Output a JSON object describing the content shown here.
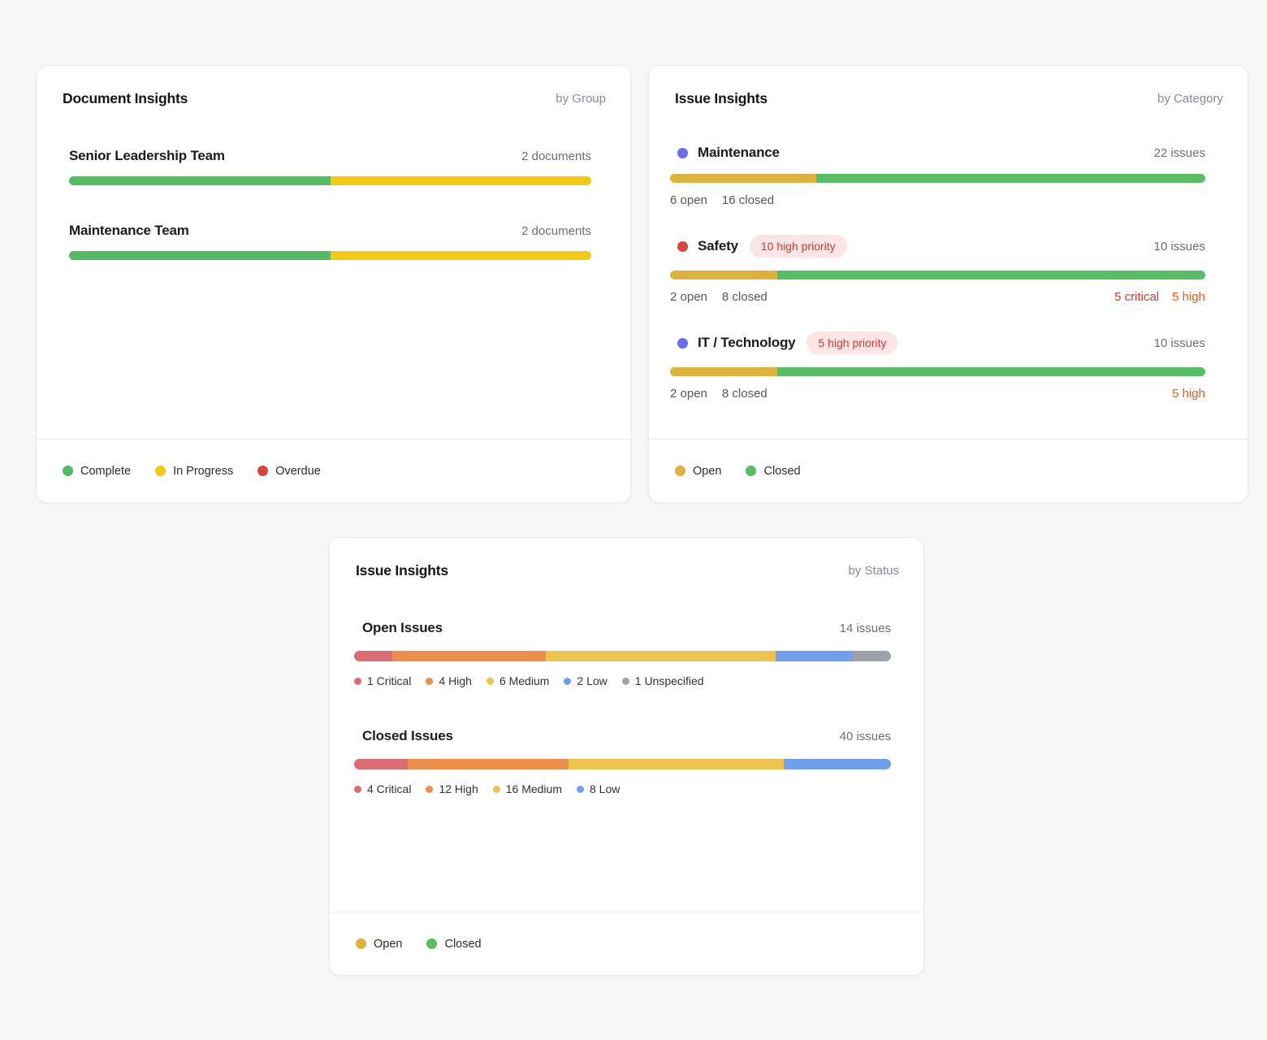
{
  "page": {
    "background": "#f7f7f8"
  },
  "colors": {
    "complete_green": "#53BC62",
    "in_progress_yellow": "#F3C913",
    "overdue_red": "#D8453A",
    "open_gold": "#DDB33E",
    "closed_green": "#57BE66",
    "category_indigo": "#6A6FE8",
    "category_red": "#D8453A",
    "critical_salmon": "#DD6B74",
    "high_orange": "#EB8F4B",
    "medium_yellow": "#EFC44D",
    "low_blue": "#6FA0EE",
    "unspecified_gray": "#9EA3AA",
    "badge_bg": "#FBE5E7",
    "badge_text": "#D5382E",
    "critical_text": "#D5382E",
    "high_text": "#ED5B16"
  },
  "document_insights": {
    "title": "Document Insights",
    "view_label": "by Group",
    "rows": [
      {
        "label": "Senior Leadership Team",
        "count": "2 documents",
        "segments": [
          {
            "status": "complete",
            "color": "#53BC62",
            "pct": 50
          },
          {
            "status": "in-progress",
            "color": "#F3C913",
            "pct": 50
          }
        ]
      },
      {
        "label": "Maintenance Team",
        "count": "2 documents",
        "segments": [
          {
            "status": "complete",
            "color": "#53BC62",
            "pct": 50
          },
          {
            "status": "in-progress",
            "color": "#F3C913",
            "pct": 50
          }
        ]
      }
    ],
    "legend": [
      {
        "label": "Complete",
        "color": "#53BC62"
      },
      {
        "label": "In Progress",
        "color": "#F3C913"
      },
      {
        "label": "Overdue",
        "color": "#D8453A"
      }
    ]
  },
  "issues_by_category": {
    "title": "Issue Insights",
    "view_label": "by Category",
    "rows": [
      {
        "label": "Maintenance",
        "dot_color": "#6A6FE8",
        "badge": null,
        "count": "22 issues",
        "segments": [
          {
            "status": "open",
            "color": "#DDB33E",
            "pct": 27.3
          },
          {
            "status": "closed",
            "color": "#57BE66",
            "pct": 72.7
          }
        ],
        "sub_left": [
          "6 open",
          "16 closed"
        ],
        "sub_right": []
      },
      {
        "label": "Safety",
        "dot_color": "#D8453A",
        "badge": "10 high priority",
        "count": "10 issues",
        "segments": [
          {
            "status": "open",
            "color": "#DDB33E",
            "pct": 20
          },
          {
            "status": "closed",
            "color": "#57BE66",
            "pct": 80
          }
        ],
        "sub_left": [
          "2 open",
          "8 closed"
        ],
        "sub_right": [
          {
            "text": "5 critical",
            "color": "#D5382E"
          },
          {
            "text": "5 high",
            "color": "#ED5B16"
          }
        ]
      },
      {
        "label": "IT / Technology",
        "dot_color": "#6A6FE8",
        "badge": "5 high priority",
        "count": "10 issues",
        "segments": [
          {
            "status": "open",
            "color": "#DDB33E",
            "pct": 20
          },
          {
            "status": "closed",
            "color": "#57BE66",
            "pct": 80
          }
        ],
        "sub_left": [
          "2 open",
          "8 closed"
        ],
        "sub_right": [
          {
            "text": "5 high",
            "color": "#ED5B16"
          }
        ]
      }
    ],
    "legend": [
      {
        "label": "Open",
        "color": "#DDB33E"
      },
      {
        "label": "Closed",
        "color": "#57BE66"
      }
    ]
  },
  "issues_by_status": {
    "title": "Issue Insights",
    "view_label": "by Status",
    "rows": [
      {
        "label": "Open Issues",
        "count": "14 issues",
        "total": 14,
        "segments": [
          {
            "label": "1 Critical",
            "value": 1,
            "color": "#DD6B74"
          },
          {
            "label": "4 High",
            "value": 4,
            "color": "#EB8F4B"
          },
          {
            "label": "6 Medium",
            "value": 6,
            "color": "#EFC44D"
          },
          {
            "label": "2 Low",
            "value": 2,
            "color": "#6FA0EE"
          },
          {
            "label": "1 Unspecified",
            "value": 1,
            "color": "#9EA3AA"
          }
        ]
      },
      {
        "label": "Closed Issues",
        "count": "40 issues",
        "total": 40,
        "segments": [
          {
            "label": "4 Critical",
            "value": 4,
            "color": "#DD6B74"
          },
          {
            "label": "12 High",
            "value": 12,
            "color": "#EB8F4B"
          },
          {
            "label": "16 Medium",
            "value": 16,
            "color": "#EFC44D"
          },
          {
            "label": "8 Low",
            "value": 8,
            "color": "#6FA0EE"
          }
        ]
      }
    ],
    "legend": [
      {
        "label": "Open",
        "color": "#DDB33E"
      },
      {
        "label": "Closed",
        "color": "#57BE66"
      }
    ]
  },
  "chart_data": [
    {
      "type": "bar",
      "title": "Document Insights by Group",
      "categories": [
        "Senior Leadership Team",
        "Maintenance Team"
      ],
      "series": [
        {
          "name": "Complete",
          "values": [
            1,
            1
          ]
        },
        {
          "name": "In Progress",
          "values": [
            1,
            1
          ]
        },
        {
          "name": "Overdue",
          "values": [
            0,
            0
          ]
        }
      ],
      "totals": [
        2,
        2
      ],
      "units": "documents",
      "legend_position": "bottom"
    },
    {
      "type": "bar",
      "title": "Issue Insights by Category",
      "categories": [
        "Maintenance",
        "Safety",
        "IT / Technology"
      ],
      "series": [
        {
          "name": "Open",
          "values": [
            6,
            2,
            2
          ]
        },
        {
          "name": "Closed",
          "values": [
            16,
            8,
            8
          ]
        }
      ],
      "totals": [
        22,
        10,
        10
      ],
      "annotations": [
        "",
        "10 high priority; 5 critical, 5 high",
        "5 high priority; 5 high"
      ],
      "units": "issues",
      "legend_position": "bottom"
    },
    {
      "type": "bar",
      "title": "Issue Insights by Status",
      "categories": [
        "Open Issues",
        "Closed Issues"
      ],
      "series": [
        {
          "name": "Critical",
          "values": [
            1,
            4
          ]
        },
        {
          "name": "High",
          "values": [
            4,
            12
          ]
        },
        {
          "name": "Medium",
          "values": [
            6,
            16
          ]
        },
        {
          "name": "Low",
          "values": [
            2,
            8
          ]
        },
        {
          "name": "Unspecified",
          "values": [
            1,
            0
          ]
        }
      ],
      "totals": [
        14,
        40
      ],
      "units": "issues",
      "legend_position": "bottom"
    }
  ]
}
